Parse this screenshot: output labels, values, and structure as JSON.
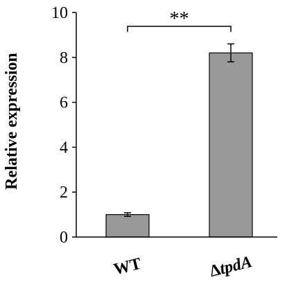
{
  "chart_data": {
    "type": "bar",
    "categories": [
      {
        "prefix": "",
        "italic": "",
        "plain": "WT"
      },
      {
        "prefix": "Δ",
        "italic": "tpdA",
        "plain": ""
      }
    ],
    "values": [
      1.0,
      8.2
    ],
    "errors": [
      0.08,
      0.4
    ],
    "ylabel": "Relative expression",
    "ylim": [
      0,
      10
    ],
    "yticks": [
      0,
      2,
      4,
      6,
      8,
      10
    ],
    "grid": false,
    "legend": "none",
    "significance": {
      "label": "**",
      "between": [
        0,
        1
      ]
    },
    "colors": {
      "bar_fill": "#999999",
      "bar_stroke": "#000000",
      "axis": "#000000"
    }
  }
}
